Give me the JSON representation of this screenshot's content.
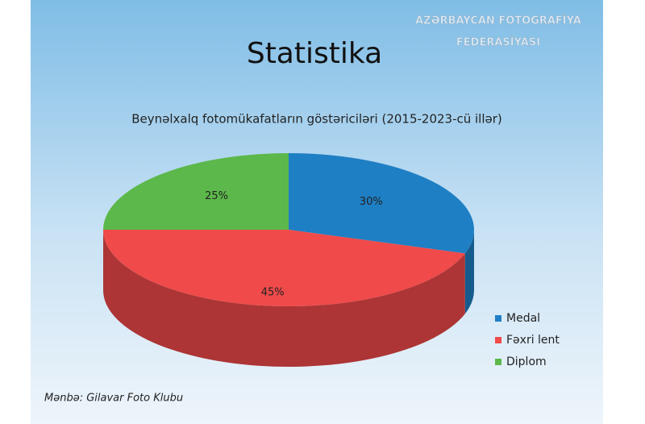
{
  "chart_data": {
    "type": "pie",
    "title": "Statistika",
    "subtitle": "Beynəlxalq fotomükafatların göstəriciləri (2015-2023-cü illər)",
    "categories": [
      "Medal",
      "Fəxri lent",
      "Diplom"
    ],
    "values": [
      30,
      45,
      25
    ],
    "value_labels": [
      "30%",
      "45%",
      "25%"
    ],
    "colors": [
      "#1f7fc4",
      "#f04a4a",
      "#5cb84a"
    ],
    "legend": "right",
    "source": "Mənbə: Gilavar Foto Klubu",
    "watermark": [
      "AZƏRBAYCAN FOTOGRAFİYA",
      "FEDERASİYASI"
    ]
  }
}
